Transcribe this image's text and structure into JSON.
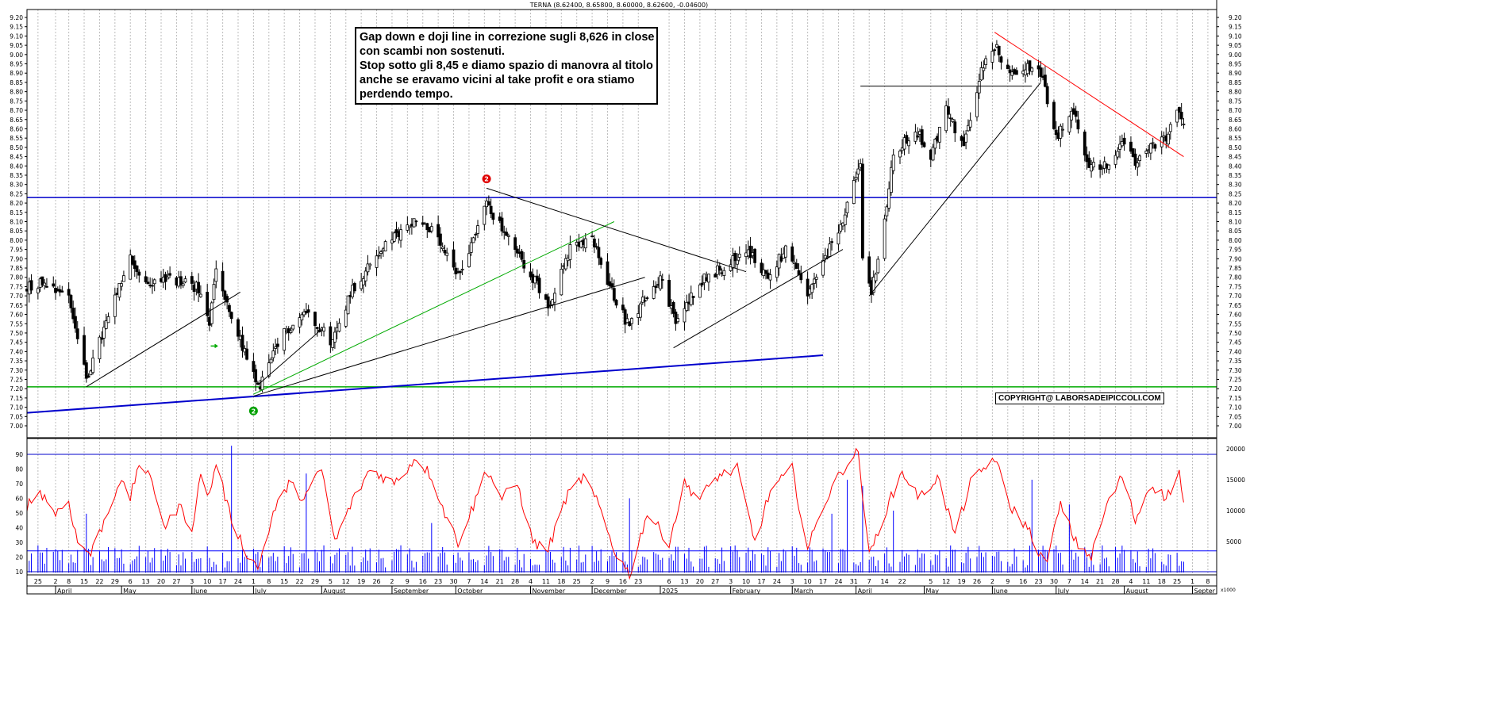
{
  "header": {
    "title": "TERNA (8.62400, 8.65800, 8.60000, 8.62600, -0.04600)"
  },
  "annotation": {
    "lines": [
      "Gap down e doji line  in correzione sugli 8,626 in close",
      "con scambi non sostenuti.",
      "Stop sotto gli 8,45 e diamo spazio di manovra al titolo",
      "anche se eravamo vicini al take profit e ora stiamo",
      "perdendo tempo."
    ]
  },
  "copyright": "COPYRIGHT@ LABORSADEIPICCOLI.COM",
  "colors": {
    "candle": "#000000",
    "rsi": "#ff0000",
    "volume": "#0000ff",
    "support": "#0000cc",
    "green_line": "#00aa00",
    "red_line": "#ff0000"
  },
  "markers": [
    {
      "label": "2",
      "color": "#e00000",
      "date": "2024-10-15",
      "price": 8.33
    },
    {
      "label": "2",
      "color": "#00a000",
      "date": "2024-07-01",
      "price": 7.08
    }
  ],
  "chart_data": [
    {
      "type": "candlestick",
      "title": "TERNA (8.62400, 8.65800, 8.60000, 8.62600, -0.04600)",
      "ylim": [
        6.97,
        9.24
      ],
      "yticks": [
        7.0,
        7.05,
        7.1,
        7.15,
        7.2,
        7.25,
        7.3,
        7.35,
        7.4,
        7.45,
        7.5,
        7.55,
        7.6,
        7.65,
        7.7,
        7.75,
        7.8,
        7.85,
        7.9,
        7.95,
        8.0,
        8.05,
        8.1,
        8.15,
        8.2,
        8.25,
        8.3,
        8.35,
        8.4,
        8.45,
        8.5,
        8.55,
        8.6,
        8.65,
        8.7,
        8.75,
        8.8,
        8.85,
        8.9,
        8.95,
        9.0,
        9.05,
        9.1,
        9.15,
        9.2
      ],
      "xrange": [
        "2024-03-20",
        "2025-09-12"
      ],
      "last_bar": {
        "open": 8.624,
        "high": 8.658,
        "low": 8.6,
        "close": 8.626,
        "change": -0.046
      },
      "close_path": [
        [
          "2024-03-20",
          7.75
        ],
        [
          "2024-03-28",
          7.78
        ],
        [
          "2024-04-08",
          7.7
        ],
        [
          "2024-04-16",
          7.25
        ],
        [
          "2024-04-25",
          7.55
        ],
        [
          "2024-05-06",
          7.9
        ],
        [
          "2024-05-13",
          7.75
        ],
        [
          "2024-05-20",
          7.8
        ],
        [
          "2024-06-05",
          7.75
        ],
        [
          "2024-06-11",
          7.55
        ],
        [
          "2024-06-14",
          7.85
        ],
        [
          "2024-06-20",
          7.6
        ],
        [
          "2024-06-27",
          7.4
        ],
        [
          "2024-07-03",
          7.2
        ],
        [
          "2024-07-15",
          7.5
        ],
        [
          "2024-07-25",
          7.62
        ],
        [
          "2024-08-06",
          7.45
        ],
        [
          "2024-08-14",
          7.72
        ],
        [
          "2024-08-28",
          7.95
        ],
        [
          "2024-09-13",
          8.12
        ],
        [
          "2024-09-20",
          8.05
        ],
        [
          "2024-10-02",
          7.8
        ],
        [
          "2024-10-15",
          8.2
        ],
        [
          "2024-10-25",
          8.0
        ],
        [
          "2024-11-05",
          7.8
        ],
        [
          "2024-11-12",
          7.65
        ],
        [
          "2024-11-22",
          7.95
        ],
        [
          "2024-12-02",
          8.0
        ],
        [
          "2024-12-10",
          7.75
        ],
        [
          "2024-12-18",
          7.55
        ],
        [
          "2025-01-02",
          7.8
        ],
        [
          "2025-01-09",
          7.55
        ],
        [
          "2025-01-20",
          7.78
        ],
        [
          "2025-01-30",
          7.85
        ],
        [
          "2025-02-10",
          7.95
        ],
        [
          "2025-02-20",
          7.8
        ],
        [
          "2025-02-28",
          7.95
        ],
        [
          "2025-03-10",
          7.7
        ],
        [
          "2025-03-20",
          7.95
        ],
        [
          "2025-03-27",
          8.15
        ],
        [
          "2025-04-03",
          8.4
        ],
        [
          "2025-04-04",
          7.9
        ],
        [
          "2025-04-08",
          7.72
        ],
        [
          "2025-04-14",
          8.1
        ],
        [
          "2025-04-18",
          8.45
        ],
        [
          "2025-04-28",
          8.6
        ],
        [
          "2025-05-05",
          8.45
        ],
        [
          "2025-05-12",
          8.7
        ],
        [
          "2025-05-20",
          8.5
        ],
        [
          "2025-05-28",
          8.92
        ],
        [
          "2025-06-03",
          9.05
        ],
        [
          "2025-06-10",
          8.88
        ],
        [
          "2025-06-18",
          8.95
        ],
        [
          "2025-06-24",
          8.9
        ],
        [
          "2025-07-01",
          8.55
        ],
        [
          "2025-07-09",
          8.7
        ],
        [
          "2025-07-15",
          8.42
        ],
        [
          "2025-07-24",
          8.4
        ],
        [
          "2025-07-31",
          8.55
        ],
        [
          "2025-08-06",
          8.4
        ],
        [
          "2025-08-13",
          8.5
        ],
        [
          "2025-08-20",
          8.55
        ],
        [
          "2025-08-26",
          8.7
        ],
        [
          "2025-08-28",
          8.626
        ]
      ],
      "horizontal_lines": [
        {
          "price": 8.23,
          "color": "#0000cc"
        },
        {
          "price": 7.21,
          "color": "#00aa00"
        }
      ],
      "trend_lines": [
        {
          "color": "#0000cc",
          "width": 2,
          "from": [
            "2024-03-20",
            7.07
          ],
          "to": [
            "2025-03-17",
            7.38
          ]
        },
        {
          "color": "#000000",
          "width": 1,
          "from": [
            "2024-04-16",
            7.21
          ],
          "to": [
            "2024-06-25",
            7.72
          ]
        },
        {
          "color": "#000000",
          "width": 1,
          "from": [
            "2024-07-01",
            7.16
          ],
          "to": [
            "2024-12-26",
            7.8
          ]
        },
        {
          "color": "#00aa00",
          "width": 1,
          "from": [
            "2024-07-01",
            7.17
          ],
          "to": [
            "2024-12-12",
            8.1
          ]
        },
        {
          "color": "#000000",
          "width": 1,
          "from": [
            "2024-10-15",
            8.28
          ],
          "to": [
            "2025-02-10",
            7.83
          ]
        },
        {
          "color": "#000000",
          "width": 1,
          "from": [
            "2025-01-08",
            7.42
          ],
          "to": [
            "2025-03-26",
            7.95
          ]
        },
        {
          "color": "#000000",
          "width": 1,
          "from": [
            "2024-07-03",
            7.22
          ],
          "to": [
            "2024-08-01",
            7.52
          ]
        },
        {
          "color": "#000000",
          "width": 1,
          "from": [
            "2025-04-07",
            7.7
          ],
          "to": [
            "2025-06-24",
            8.85
          ]
        },
        {
          "color": "#000000",
          "width": 1,
          "from": [
            "2025-04-03",
            8.83
          ],
          "to": [
            "2025-06-20",
            8.83
          ]
        },
        {
          "color": "#ff0000",
          "width": 1,
          "from": [
            "2025-06-03",
            9.12
          ],
          "to": [
            "2025-08-28",
            8.45
          ]
        }
      ]
    },
    {
      "type": "line",
      "series": [
        {
          "values_note": "RSI oscillator, red",
          "color": "#ff0000"
        }
      ],
      "ylim": [
        0,
        100
      ],
      "yticks": [
        10,
        20,
        30,
        40,
        50,
        60,
        70,
        80,
        90
      ],
      "levels": [
        10,
        90
      ],
      "rsi_path": [
        [
          "2024-03-20",
          55
        ],
        [
          "2024-03-26",
          65
        ],
        [
          "2024-04-02",
          50
        ],
        [
          "2024-04-08",
          58
        ],
        [
          "2024-04-12",
          30
        ],
        [
          "2024-04-18",
          22
        ],
        [
          "2024-04-25",
          48
        ],
        [
          "2024-05-01",
          72
        ],
        [
          "2024-05-06",
          60
        ],
        [
          "2024-05-10",
          85
        ],
        [
          "2024-05-16",
          70
        ],
        [
          "2024-05-22",
          40
        ],
        [
          "2024-05-28",
          55
        ],
        [
          "2024-06-03",
          40
        ],
        [
          "2024-06-07",
          75
        ],
        [
          "2024-06-11",
          62
        ],
        [
          "2024-06-14",
          85
        ],
        [
          "2024-06-20",
          50
        ],
        [
          "2024-06-27",
          25
        ],
        [
          "2024-07-03",
          12
        ],
        [
          "2024-07-10",
          50
        ],
        [
          "2024-07-17",
          70
        ],
        [
          "2024-07-24",
          60
        ],
        [
          "2024-08-01",
          80
        ],
        [
          "2024-08-07",
          30
        ],
        [
          "2024-08-14",
          55
        ],
        [
          "2024-08-23",
          80
        ],
        [
          "2024-09-03",
          70
        ],
        [
          "2024-09-13",
          88
        ],
        [
          "2024-09-20",
          75
        ],
        [
          "2024-09-26",
          50
        ],
        [
          "2024-10-02",
          30
        ],
        [
          "2024-10-09",
          55
        ],
        [
          "2024-10-15",
          80
        ],
        [
          "2024-10-22",
          60
        ],
        [
          "2024-10-29",
          70
        ],
        [
          "2024-11-05",
          30
        ],
        [
          "2024-11-12",
          25
        ],
        [
          "2024-11-20",
          60
        ],
        [
          "2024-11-28",
          75
        ],
        [
          "2024-12-05",
          55
        ],
        [
          "2024-12-12",
          25
        ],
        [
          "2024-12-19",
          8
        ],
        [
          "2024-12-27",
          50
        ],
        [
          "2025-01-06",
          30
        ],
        [
          "2025-01-13",
          70
        ],
        [
          "2025-01-20",
          60
        ],
        [
          "2025-01-28",
          75
        ],
        [
          "2025-02-06",
          80
        ],
        [
          "2025-02-14",
          30
        ],
        [
          "2025-02-21",
          65
        ],
        [
          "2025-03-03",
          80
        ],
        [
          "2025-03-10",
          25
        ],
        [
          "2025-03-17",
          55
        ],
        [
          "2025-03-26",
          80
        ],
        [
          "2025-04-02",
          92
        ],
        [
          "2025-04-07",
          20
        ],
        [
          "2025-04-14",
          50
        ],
        [
          "2025-04-22",
          78
        ],
        [
          "2025-04-30",
          60
        ],
        [
          "2025-05-08",
          75
        ],
        [
          "2025-05-16",
          35
        ],
        [
          "2025-05-23",
          70
        ],
        [
          "2025-06-03",
          88
        ],
        [
          "2025-06-10",
          55
        ],
        [
          "2025-06-18",
          40
        ],
        [
          "2025-06-26",
          15
        ],
        [
          "2025-07-03",
          55
        ],
        [
          "2025-07-10",
          30
        ],
        [
          "2025-07-17",
          20
        ],
        [
          "2025-07-24",
          55
        ],
        [
          "2025-07-31",
          75
        ],
        [
          "2025-08-06",
          45
        ],
        [
          "2025-08-13",
          70
        ],
        [
          "2025-08-20",
          60
        ],
        [
          "2025-08-26",
          78
        ],
        [
          "2025-08-28",
          55
        ]
      ]
    },
    {
      "type": "bar",
      "series": [
        {
          "values_note": "daily volume, blue",
          "color": "#0000ff"
        }
      ],
      "ylim": [
        0,
        21000
      ],
      "yticks": [
        5000,
        10000,
        15000,
        20000
      ],
      "unit_label": "x1000",
      "average_level": 3500,
      "volume_spikes": [
        [
          "2024-06-21",
          20500
        ],
        [
          "2024-07-25",
          16000
        ],
        [
          "2024-04-16",
          9500
        ],
        [
          "2024-09-20",
          8000
        ],
        [
          "2024-12-19",
          12000
        ],
        [
          "2025-03-21",
          9500
        ],
        [
          "2025-03-28",
          15000
        ],
        [
          "2025-04-04",
          14000
        ],
        [
          "2025-06-20",
          15000
        ],
        [
          "2025-07-07",
          11000
        ],
        [
          "2025-04-18",
          10000
        ]
      ]
    }
  ],
  "x_axis": {
    "day_ticks": [
      [
        "2024-03-25",
        "25"
      ],
      [
        "2024-04-02",
        "2"
      ],
      [
        "2024-04-08",
        "8"
      ],
      [
        "2024-04-15",
        "15"
      ],
      [
        "2024-04-22",
        "22"
      ],
      [
        "2024-04-29",
        "29"
      ],
      [
        "2024-05-06",
        "6"
      ],
      [
        "2024-05-13",
        "13"
      ],
      [
        "2024-05-20",
        "20"
      ],
      [
        "2024-05-27",
        "27"
      ],
      [
        "2024-06-03",
        "3"
      ],
      [
        "2024-06-10",
        "10"
      ],
      [
        "2024-06-17",
        "17"
      ],
      [
        "2024-06-24",
        "24"
      ],
      [
        "2024-07-01",
        "1"
      ],
      [
        "2024-07-08",
        "8"
      ],
      [
        "2024-07-15",
        "15"
      ],
      [
        "2024-07-22",
        "22"
      ],
      [
        "2024-07-29",
        "29"
      ],
      [
        "2024-08-05",
        "5"
      ],
      [
        "2024-08-12",
        "12"
      ],
      [
        "2024-08-19",
        "19"
      ],
      [
        "2024-08-26",
        "26"
      ],
      [
        "2024-09-02",
        "2"
      ],
      [
        "2024-09-09",
        "9"
      ],
      [
        "2024-09-16",
        "16"
      ],
      [
        "2024-09-23",
        "23"
      ],
      [
        "2024-09-30",
        "30"
      ],
      [
        "2024-10-07",
        "7"
      ],
      [
        "2024-10-14",
        "14"
      ],
      [
        "2024-10-21",
        "21"
      ],
      [
        "2024-10-28",
        "28"
      ],
      [
        "2024-11-04",
        "4"
      ],
      [
        "2024-11-11",
        "11"
      ],
      [
        "2024-11-18",
        "18"
      ],
      [
        "2024-11-25",
        "25"
      ],
      [
        "2024-12-02",
        "2"
      ],
      [
        "2024-12-09",
        "9"
      ],
      [
        "2024-12-16",
        "16"
      ],
      [
        "2024-12-23",
        "23"
      ],
      [
        "2025-01-06",
        "6"
      ],
      [
        "2025-01-13",
        "13"
      ],
      [
        "2025-01-20",
        "20"
      ],
      [
        "2025-01-27",
        "27"
      ],
      [
        "2025-02-03",
        "3"
      ],
      [
        "2025-02-10",
        "10"
      ],
      [
        "2025-02-17",
        "17"
      ],
      [
        "2025-02-24",
        "24"
      ],
      [
        "2025-03-03",
        "3"
      ],
      [
        "2025-03-10",
        "10"
      ],
      [
        "2025-03-17",
        "17"
      ],
      [
        "2025-03-24",
        "24"
      ],
      [
        "2025-03-31",
        "31"
      ],
      [
        "2025-04-07",
        "7"
      ],
      [
        "2025-04-14",
        "14"
      ],
      [
        "2025-04-22",
        "22"
      ],
      [
        "2025-05-05",
        "5"
      ],
      [
        "2025-05-12",
        "12"
      ],
      [
        "2025-05-19",
        "19"
      ],
      [
        "2025-05-26",
        "26"
      ],
      [
        "2025-06-02",
        "2"
      ],
      [
        "2025-06-09",
        "9"
      ],
      [
        "2025-06-16",
        "16"
      ],
      [
        "2025-06-23",
        "23"
      ],
      [
        "2025-06-30",
        "30"
      ],
      [
        "2025-07-07",
        "7"
      ],
      [
        "2025-07-14",
        "14"
      ],
      [
        "2025-07-21",
        "21"
      ],
      [
        "2025-07-28",
        "28"
      ],
      [
        "2025-08-04",
        "4"
      ],
      [
        "2025-08-11",
        "11"
      ],
      [
        "2025-08-18",
        "18"
      ],
      [
        "2025-08-25",
        "25"
      ],
      [
        "2025-09-01",
        "1"
      ],
      [
        "2025-09-08",
        "8"
      ]
    ],
    "month_labels": [
      [
        "2024-04-02",
        "April"
      ],
      [
        "2024-05-02",
        "May"
      ],
      [
        "2024-06-03",
        "June"
      ],
      [
        "2024-07-01",
        "July"
      ],
      [
        "2024-08-01",
        "August"
      ],
      [
        "2024-09-02",
        "September"
      ],
      [
        "2024-10-01",
        "October"
      ],
      [
        "2024-11-04",
        "November"
      ],
      [
        "2024-12-02",
        "December"
      ],
      [
        "2025-01-02",
        "2025"
      ],
      [
        "2025-02-03",
        "February"
      ],
      [
        "2025-03-03",
        "March"
      ],
      [
        "2025-04-01",
        "April"
      ],
      [
        "2025-05-02",
        "May"
      ],
      [
        "2025-06-02",
        "June"
      ],
      [
        "2025-07-01",
        "July"
      ],
      [
        "2025-08-01",
        "August"
      ],
      [
        "2025-09-01",
        "Septer"
      ]
    ]
  }
}
